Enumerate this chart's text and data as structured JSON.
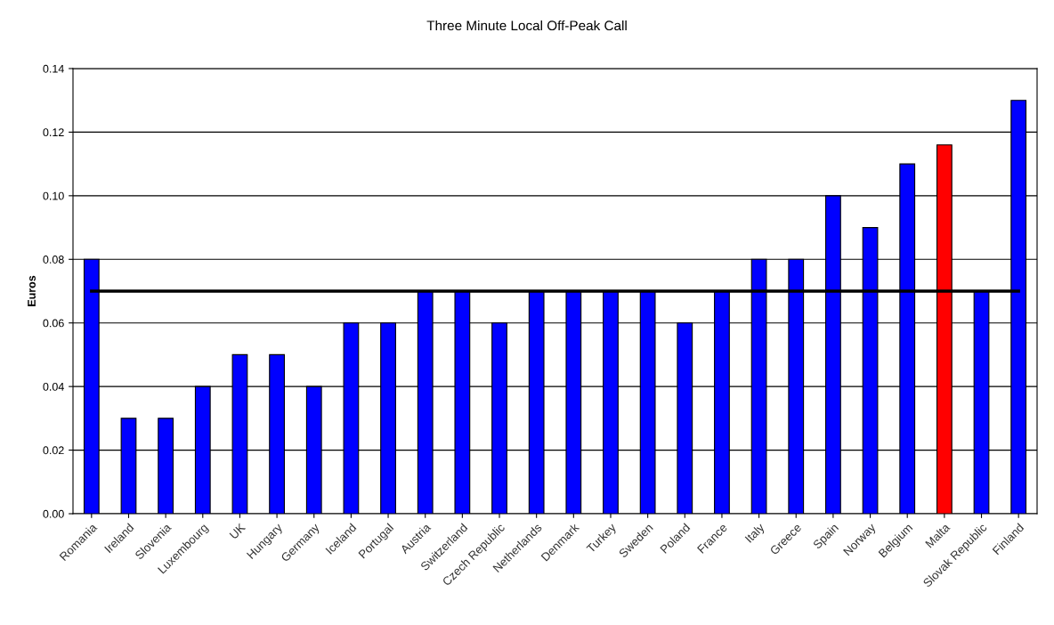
{
  "chart_data": {
    "type": "bar",
    "title": "Three Minute Local Off-Peak Call",
    "ylabel": "Euros",
    "categories": [
      "Romania",
      "Ireland",
      "Slovenia",
      "Luxembourg",
      "UK",
      "Hungary",
      "Germany",
      "Iceland",
      "Portugal",
      "Austria",
      "Switzerland",
      "Czech Republic",
      "Netherlands",
      "Denmark",
      "Turkey",
      "Sweden",
      "Poland",
      "France",
      "Italy",
      "Greece",
      "Spain",
      "Norway",
      "Belgium",
      "Malta",
      "Slovak Republic",
      "Finland"
    ],
    "values": [
      0.08,
      0.03,
      0.03,
      0.04,
      0.05,
      0.05,
      0.04,
      0.06,
      0.06,
      0.07,
      0.07,
      0.06,
      0.07,
      0.07,
      0.07,
      0.07,
      0.06,
      0.07,
      0.08,
      0.08,
      0.1,
      0.09,
      0.11,
      0.116,
      0.07,
      0.13
    ],
    "colors": [
      "#0000ff",
      "#0000ff",
      "#0000ff",
      "#0000ff",
      "#0000ff",
      "#0000ff",
      "#0000ff",
      "#0000ff",
      "#0000ff",
      "#0000ff",
      "#0000ff",
      "#0000ff",
      "#0000ff",
      "#0000ff",
      "#0000ff",
      "#0000ff",
      "#0000ff",
      "#0000ff",
      "#0000ff",
      "#0000ff",
      "#0000ff",
      "#0000ff",
      "#0000ff",
      "#ff0000",
      "#0000ff",
      "#0000ff"
    ],
    "ylim": [
      0,
      0.14
    ],
    "yticks": [
      {
        "value": 0,
        "label": "0.00"
      },
      {
        "value": 0.02,
        "label": "0.02"
      },
      {
        "value": 0.04,
        "label": "0.04"
      },
      {
        "value": 0.06,
        "label": "0.06"
      },
      {
        "value": 0.08,
        "label": "0.08"
      },
      {
        "value": 0.1,
        "label": "0.10"
      },
      {
        "value": 0.12,
        "label": "0.12"
      },
      {
        "value": 0.14,
        "label": "0.14"
      }
    ],
    "grid": "y",
    "ref_lines": [
      {
        "axis": "y",
        "value": 0.07,
        "color": "#000000"
      }
    ]
  }
}
